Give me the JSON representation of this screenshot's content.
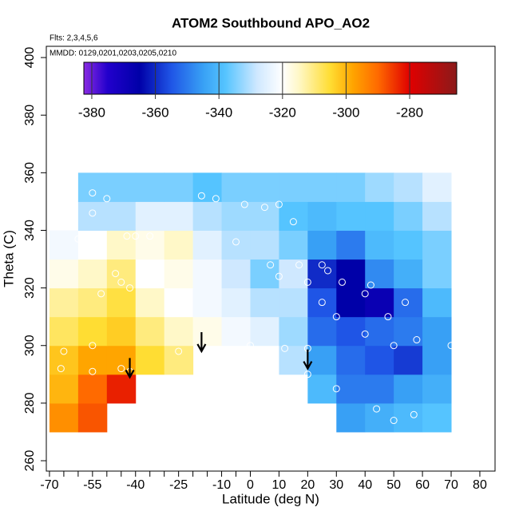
{
  "chart_data": {
    "type": "heatmap",
    "title": "ATOM2 Southbound APO_AO2",
    "subtitle": "Flts: 2,3,4,5,6",
    "annotation": "MMDD: 0129,0201,0203,0205,0210",
    "xlabel": "Latitude (deg N)",
    "ylabel": "Theta (C)",
    "xlim": [
      -71.1,
      85.3
    ],
    "xticks": [
      -70,
      -55,
      -40,
      -25,
      -10,
      0,
      10,
      20,
      30,
      40,
      50,
      60,
      70,
      80
    ],
    "xminorticks": [
      -65,
      -60,
      -50,
      -45,
      -35,
      -30,
      -20,
      -15,
      -5
    ],
    "ylim": [
      256.4,
      403.9
    ],
    "yticks": [
      260,
      280,
      300,
      320,
      340,
      360,
      380,
      400
    ],
    "x": [
      -65,
      -55,
      -45,
      -35,
      -25,
      -15,
      -5,
      5,
      15,
      25,
      35,
      45,
      55,
      65
    ],
    "y": [
      275,
      285,
      295,
      305,
      315,
      325,
      335,
      345,
      355
    ],
    "z": [
      [
        -295,
        -288,
        null,
        null,
        null,
        null,
        null,
        null,
        null,
        null,
        -345,
        -342,
        -340,
        -338
      ],
      [
        -300,
        -290,
        -283,
        null,
        null,
        null,
        null,
        null,
        null,
        -340,
        -350,
        -350,
        -345,
        -342
      ],
      [
        -302,
        -298,
        -298,
        -305,
        -310,
        null,
        null,
        null,
        -330,
        -345,
        -352,
        -355,
        -358,
        -345
      ],
      [
        -308,
        -305,
        -303,
        -310,
        -315,
        -318,
        -322,
        -325,
        -332,
        -352,
        -355,
        -352,
        -350,
        -345
      ],
      [
        -312,
        -310,
        -306,
        -315,
        -320,
        -322,
        -325,
        -330,
        -330,
        -355,
        -365,
        -368,
        -352,
        -340
      ],
      [
        -318,
        -315,
        -310,
        -320,
        -318,
        -322,
        -328,
        -335,
        -328,
        -360,
        -365,
        -348,
        -342,
        -335
      ],
      [
        -322,
        -320,
        -315,
        -318,
        -315,
        -325,
        -330,
        -330,
        -335,
        -345,
        -350,
        -340,
        -338,
        -335
      ],
      [
        null,
        -330,
        -330,
        -325,
        -325,
        -330,
        -332,
        -332,
        -338,
        -340,
        -338,
        -338,
        -335,
        -330
      ],
      [
        null,
        -335,
        -335,
        -335,
        -335,
        -338,
        -335,
        -335,
        -335,
        -335,
        -335,
        -332,
        -330,
        -325
      ]
    ],
    "colorbar_lim": [
      -382.5,
      -265.2
    ],
    "colorbar_ticks": [
      -380,
      -360,
      -340,
      -320,
      -300,
      -280
    ],
    "colorscale": [
      {
        "value": -382.5,
        "color": "#8a2be2"
      },
      {
        "value": -375,
        "color": "#2200cc"
      },
      {
        "value": -365,
        "color": "#0000a8"
      },
      {
        "value": -355,
        "color": "#1f55e6"
      },
      {
        "value": -345,
        "color": "#38a0f5"
      },
      {
        "value": -338,
        "color": "#55c4ff"
      },
      {
        "value": -328,
        "color": "#cfe8ff"
      },
      {
        "value": -320,
        "color": "#ffffff"
      },
      {
        "value": -315,
        "color": "#fff8c8"
      },
      {
        "value": -305,
        "color": "#ffdd33"
      },
      {
        "value": -298,
        "color": "#ffa500"
      },
      {
        "value": -290,
        "color": "#ff6a00"
      },
      {
        "value": -280,
        "color": "#e00000"
      },
      {
        "value": -265.2,
        "color": "#8b1a1a"
      }
    ],
    "points": {
      "x": [
        -55,
        -50,
        -55,
        -43,
        -40,
        -35,
        -60,
        -47,
        -45,
        -42,
        -52,
        -55,
        -65,
        -66,
        -55,
        -45,
        -42,
        -25,
        -17,
        -12,
        -2,
        5,
        10,
        15,
        -5,
        7,
        10,
        17,
        20,
        25,
        27,
        32,
        42,
        40,
        48,
        54,
        58,
        50,
        40,
        30,
        25,
        20,
        20,
        30,
        44,
        50,
        57,
        70,
        0,
        12
      ],
      "y": [
        353,
        351,
        346,
        338,
        338,
        338,
        337,
        325,
        322,
        320,
        318,
        300,
        298,
        292,
        291,
        292,
        291,
        298,
        352,
        351,
        349,
        348,
        349,
        343,
        336,
        328,
        324,
        328,
        322,
        328,
        326,
        322,
        321,
        318,
        310,
        315,
        302,
        300,
        304,
        310,
        315,
        299,
        290,
        285,
        278,
        274,
        276,
        300,
        300,
        299
      ]
    },
    "arrows": {
      "x": [
        -42,
        -17,
        20
      ],
      "y": [
        289,
        298,
        292
      ]
    }
  }
}
